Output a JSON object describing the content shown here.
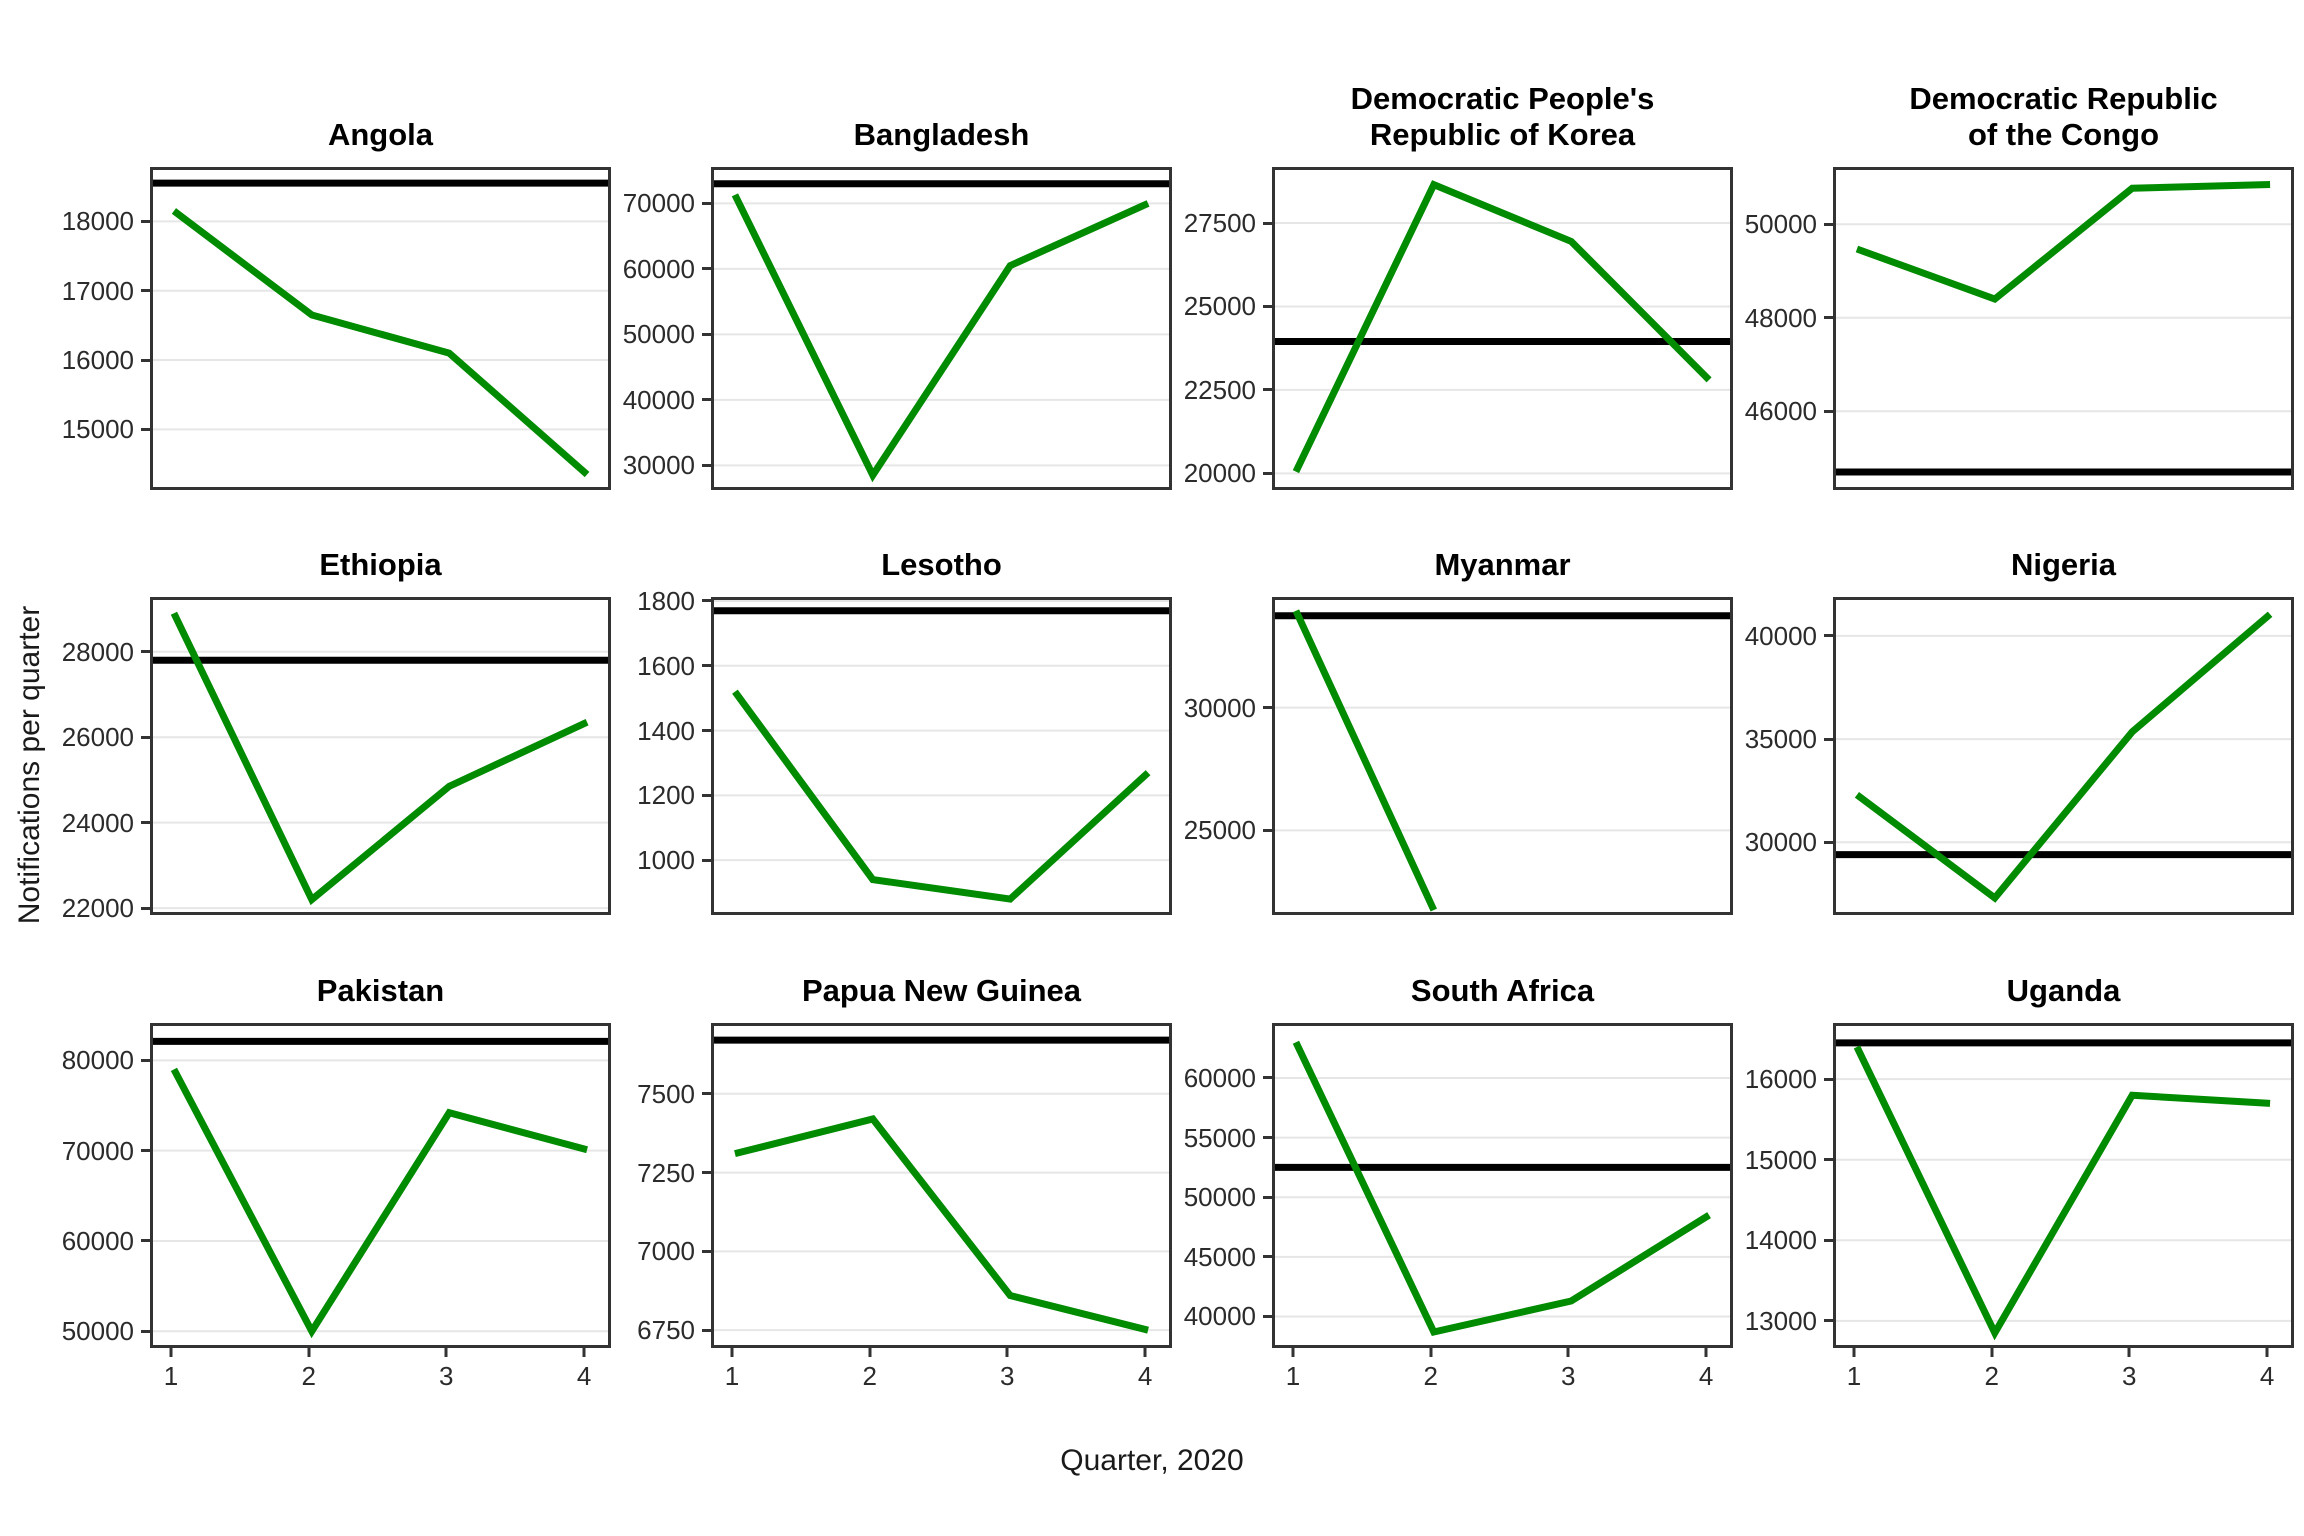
{
  "figure": {
    "colors": {
      "line": "#008B00",
      "reference_line": "#000000",
      "gridline": "#e6e6e6",
      "panel_border": "#333333",
      "tick_text": "#2b2b2b",
      "title_text": "#000000"
    }
  },
  "chart_data": {
    "type": "line",
    "xlabel": "Quarter, 2020",
    "ylabel": "Notifications per quarter",
    "x": [
      1,
      2,
      3,
      4
    ],
    "x_tick_labels": [
      "1",
      "2",
      "3",
      "4"
    ],
    "grid": "horizontal-only",
    "legend": "none",
    "facets": "12 small multiples, free y scales, green quarterly line plus black horizontal reference line per panel",
    "panels": [
      {
        "title": "Angola",
        "yticks": [
          15000,
          16000,
          17000,
          18000
        ],
        "ylim": [
          14170,
          18740
        ],
        "values": [
          18150,
          16650,
          16100,
          14350
        ],
        "reference": 18550
      },
      {
        "title": "Bangladesh",
        "yticks": [
          30000,
          40000,
          50000,
          60000,
          70000
        ],
        "ylim": [
          26700,
          75100
        ],
        "values": [
          71300,
          28500,
          60500,
          70000
        ],
        "reference": 73000
      },
      {
        "title": "Democratic People's\nRepublic of Korea",
        "yticks": [
          20000,
          22500,
          25000,
          27500
        ],
        "ylim": [
          19590,
          29090
        ],
        "values": [
          20050,
          28650,
          26950,
          22800
        ],
        "reference": 23950
      },
      {
        "title": "Democratic Republic\nof the Congo",
        "yticks": [
          46000,
          48000,
          50000
        ],
        "ylim": [
          44380,
          51160
        ],
        "values": [
          49470,
          48400,
          50770,
          50850
        ],
        "reference": 44700
      },
      {
        "title": "Ethiopia",
        "yticks": [
          22000,
          24000,
          26000,
          28000
        ],
        "ylim": [
          21910,
          29210
        ],
        "values": [
          28900,
          22200,
          24850,
          26350
        ],
        "reference": 27800
      },
      {
        "title": "Lesotho",
        "yticks": [
          1000,
          1200,
          1400,
          1600,
          1800
        ],
        "ylim": [
          840,
          1803
        ],
        "values": [
          1520,
          940,
          880,
          1270
        ],
        "reference": 1770
      },
      {
        "title": "Myanmar",
        "yticks": [
          25000,
          30000
        ],
        "ylim": [
          21670,
          34390
        ],
        "values": [
          33950,
          21750,
          null,
          null
        ],
        "reference": 33750
      },
      {
        "title": "Nigeria",
        "yticks": [
          30000,
          35000,
          40000
        ],
        "ylim": [
          26620,
          41740
        ],
        "values": [
          32300,
          27300,
          35350,
          41050
        ],
        "reference": 29400
      },
      {
        "title": "Pakistan",
        "yticks": [
          50000,
          60000,
          70000,
          80000
        ],
        "ylim": [
          48480,
          83800
        ],
        "values": [
          79000,
          50000,
          74200,
          70100
        ],
        "reference": 82100
      },
      {
        "title": "Papua New Guinea",
        "yticks": [
          6750,
          7000,
          7250,
          7500
        ],
        "ylim": [
          6703,
          7715
        ],
        "values": [
          7310,
          7420,
          6860,
          6750
        ],
        "reference": 7670
      },
      {
        "title": "South Africa",
        "yticks": [
          40000,
          45000,
          50000,
          55000,
          60000
        ],
        "ylim": [
          37610,
          64360
        ],
        "values": [
          63000,
          38700,
          41300,
          48500
        ],
        "reference": 52500
      },
      {
        "title": "Uganda",
        "yticks": [
          13000,
          14000,
          15000,
          16000
        ],
        "ylim": [
          12700,
          16660
        ],
        "values": [
          16400,
          12850,
          15800,
          15700
        ],
        "reference": 16450
      }
    ]
  }
}
